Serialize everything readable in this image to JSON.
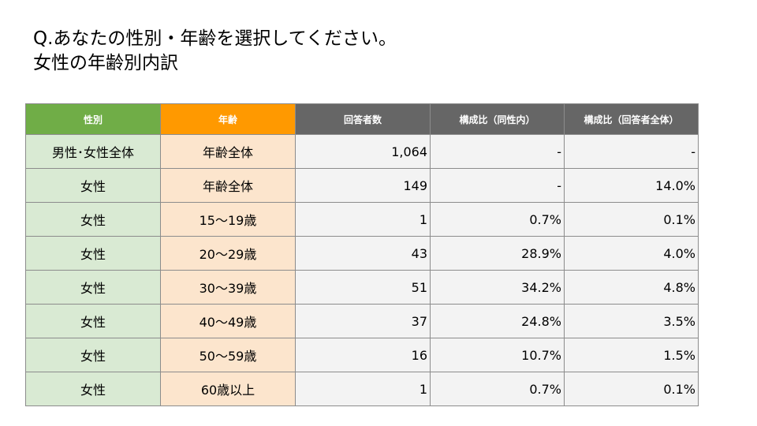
{
  "title": {
    "line1": "Q.あなたの性別・年齢を選択してください。",
    "line2": "女性の年齢別内訳"
  },
  "colors": {
    "header_sex": "#70ad47",
    "header_age": "#ff9900",
    "header_numeric": "#666666",
    "cell_sex": "#d9ead3",
    "cell_age": "#fce5cd",
    "cell_numeric": "#f3f3f3"
  },
  "table": {
    "headers": [
      "性別",
      "年齢",
      "回答者数",
      "構成比（同性内）",
      "構成比（回答者全体）"
    ],
    "rows": [
      [
        "男性･女性全体",
        "年齢全体",
        "1,064",
        "-",
        "-"
      ],
      [
        "女性",
        "年齢全体",
        "149",
        "-",
        "14.0%"
      ],
      [
        "女性",
        "15〜19歳",
        "1",
        "0.7%",
        "0.1%"
      ],
      [
        "女性",
        "20〜29歳",
        "43",
        "28.9%",
        "4.0%"
      ],
      [
        "女性",
        "30〜39歳",
        "51",
        "34.2%",
        "4.8%"
      ],
      [
        "女性",
        "40〜49歳",
        "37",
        "24.8%",
        "3.5%"
      ],
      [
        "女性",
        "50〜59歳",
        "16",
        "10.7%",
        "1.5%"
      ],
      [
        "女性",
        "60歳以上",
        "1",
        "0.7%",
        "0.1%"
      ]
    ]
  }
}
